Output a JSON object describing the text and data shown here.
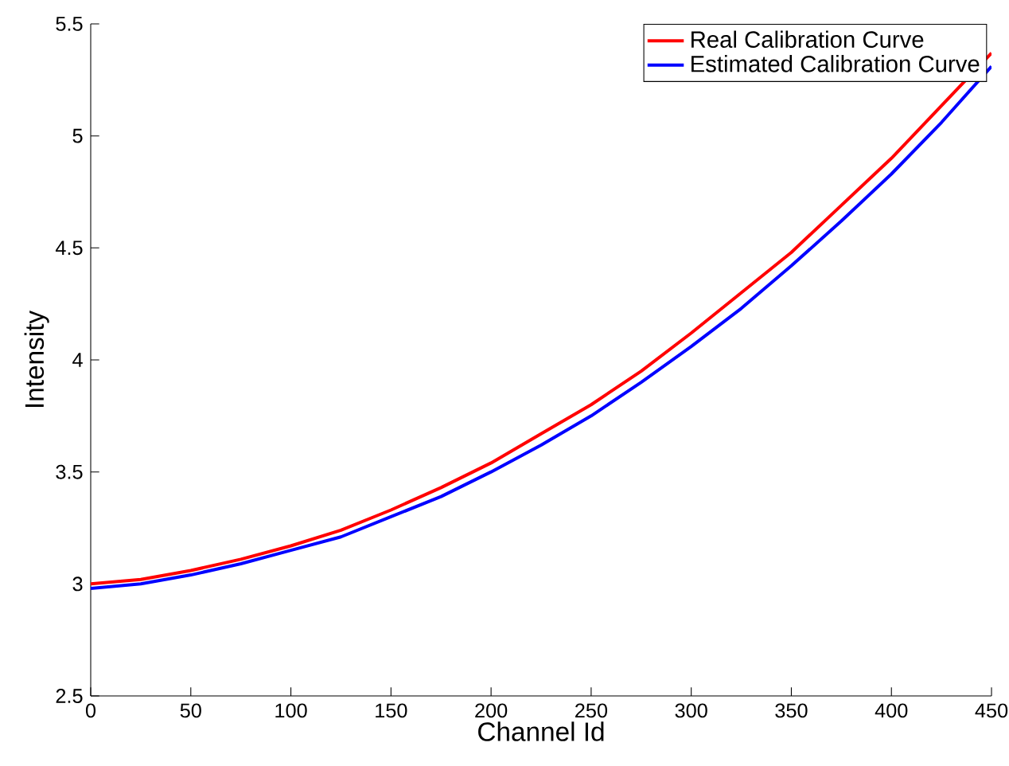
{
  "chart_data": {
    "type": "line",
    "xlabel": "Channel Id",
    "ylabel": "Intensity",
    "xlim": [
      0,
      450
    ],
    "ylim": [
      2.5,
      5.5
    ],
    "xticks": [
      0,
      50,
      100,
      150,
      200,
      250,
      300,
      350,
      400,
      450
    ],
    "yticks": [
      2.5,
      3,
      3.5,
      4,
      4.5,
      5,
      5.5
    ],
    "grid": false,
    "legend": "top right",
    "line_style": "solid",
    "series": [
      {
        "name": "Real Calibration Curve",
        "color": "#ff0000",
        "x": [
          0,
          25,
          50,
          75,
          100,
          125,
          150,
          175,
          200,
          225,
          250,
          275,
          300,
          325,
          350,
          375,
          400,
          450
        ],
        "values": [
          3.0,
          3.02,
          3.06,
          3.11,
          3.17,
          3.24,
          3.33,
          3.43,
          3.54,
          3.67,
          3.8,
          3.95,
          4.12,
          4.3,
          4.48,
          4.69,
          4.9,
          5.37
        ]
      },
      {
        "name": "Estimated Calibration Curve",
        "color": "#0000ff",
        "x": [
          0,
          25,
          50,
          75,
          100,
          125,
          150,
          175,
          200,
          225,
          250,
          275,
          300,
          325,
          350,
          375,
          400,
          425,
          450
        ],
        "values": [
          2.98,
          3.0,
          3.04,
          3.09,
          3.15,
          3.21,
          3.3,
          3.39,
          3.5,
          3.62,
          3.75,
          3.9,
          4.06,
          4.23,
          4.42,
          4.62,
          4.83,
          5.06,
          5.31
        ]
      }
    ]
  }
}
